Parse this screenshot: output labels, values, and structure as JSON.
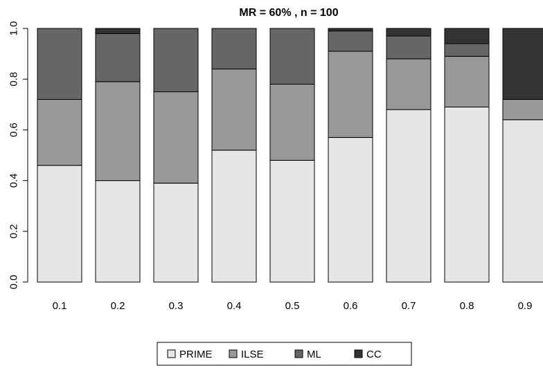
{
  "chart_data": {
    "type": "bar",
    "stacked": true,
    "title": "MR = 60% ,  n = 100",
    "xlabel": "",
    "ylabel": "",
    "categories": [
      "0.1",
      "0.2",
      "0.3",
      "0.4",
      "0.5",
      "0.6",
      "0.7",
      "0.8",
      "0.9"
    ],
    "ylim": [
      0,
      1
    ],
    "yticks": [
      "0.0",
      "0.2",
      "0.4",
      "0.6",
      "0.8",
      "1.0"
    ],
    "grid": false,
    "legend_position": "bottom",
    "series": [
      {
        "name": "PRIME",
        "color": "#e6e6e6",
        "values": [
          0.46,
          0.4,
          0.39,
          0.52,
          0.48,
          0.57,
          0.68,
          0.69,
          0.64
        ]
      },
      {
        "name": "ILSE",
        "color": "#999999",
        "values": [
          0.26,
          0.39,
          0.36,
          0.32,
          0.3,
          0.34,
          0.2,
          0.2,
          0.08
        ]
      },
      {
        "name": "ML",
        "color": "#666666",
        "values": [
          0.28,
          0.19,
          0.25,
          0.16,
          0.22,
          0.08,
          0.09,
          0.05,
          0.0
        ]
      },
      {
        "name": "CC",
        "color": "#333333",
        "values": [
          0.0,
          0.02,
          0.0,
          0.0,
          0.0,
          0.01,
          0.03,
          0.06,
          0.28
        ]
      }
    ]
  }
}
